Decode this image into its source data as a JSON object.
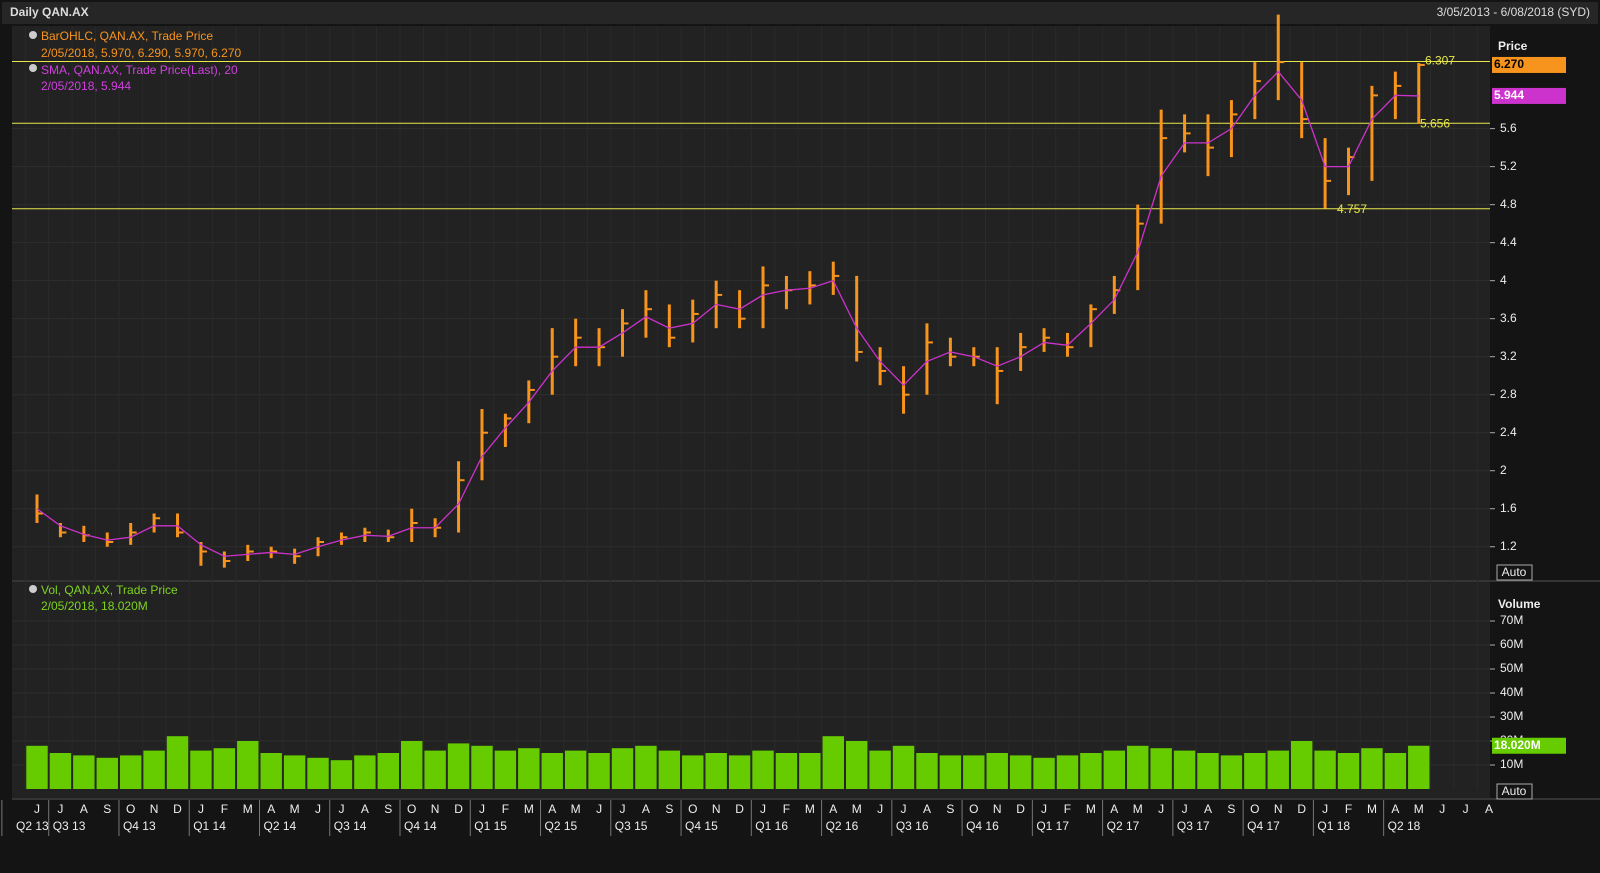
{
  "chart_data": {
    "type": "ohlc",
    "title": "Daily QAN.AX",
    "date_range": "3/05/2013 - 6/08/2018 (SYD)",
    "price_axis_label": "Price",
    "volume_axis_label": "Volume",
    "auto_label": "Auto",
    "categories": [
      "J",
      "J",
      "A",
      "S",
      "O",
      "N",
      "D",
      "J",
      "F",
      "M",
      "A",
      "M",
      "J",
      "J",
      "A",
      "S",
      "O",
      "N",
      "D",
      "J",
      "F",
      "M",
      "A",
      "M",
      "J",
      "J",
      "A",
      "S",
      "O",
      "N",
      "D",
      "J",
      "F",
      "M",
      "A",
      "M",
      "J",
      "J",
      "A",
      "S",
      "O",
      "N",
      "D",
      "J",
      "F",
      "M",
      "A",
      "M",
      "J",
      "J",
      "A",
      "S",
      "O",
      "N",
      "D",
      "J",
      "F",
      "M",
      "A",
      "M",
      "J",
      "J",
      "A"
    ],
    "quarters": [
      "Q2 13",
      "Q3 13",
      "Q4 13",
      "Q1 14",
      "Q2 14",
      "Q3 14",
      "Q4 14",
      "Q1 15",
      "Q2 15",
      "Q3 15",
      "Q4 15",
      "Q1 16",
      "Q2 16",
      "Q3 16",
      "Q4 16",
      "Q1 17",
      "Q2 17",
      "Q3 17",
      "Q4 17",
      "Q1 18",
      "Q2 18"
    ],
    "series": [
      {
        "name": "BarOHLC, QAN.AX, Trade Price",
        "legend_value": "2/05/2018, 5.970, 6.290, 5.970, 6.270",
        "color": "#f7941d",
        "high": [
          1.75,
          1.45,
          1.42,
          1.35,
          1.45,
          1.55,
          1.55,
          1.25,
          1.15,
          1.22,
          1.2,
          1.18,
          1.3,
          1.35,
          1.4,
          1.38,
          1.6,
          1.5,
          2.1,
          2.65,
          2.6,
          2.95,
          3.5,
          3.6,
          3.5,
          3.7,
          3.9,
          3.75,
          3.8,
          4.0,
          3.9,
          4.15,
          4.05,
          4.1,
          4.2,
          4.05,
          3.3,
          3.1,
          3.55,
          3.4,
          3.3,
          3.3,
          3.45,
          3.5,
          3.45,
          3.75,
          4.05,
          4.8,
          5.8,
          5.75,
          5.75,
          5.9,
          6.3,
          6.8,
          6.3,
          5.5,
          5.4,
          6.05,
          6.2,
          6.29,
          null,
          null,
          null
        ],
        "low": [
          1.45,
          1.3,
          1.25,
          1.2,
          1.22,
          1.35,
          1.3,
          1.0,
          0.98,
          1.05,
          1.08,
          1.02,
          1.1,
          1.22,
          1.25,
          1.25,
          1.25,
          1.3,
          1.35,
          1.9,
          2.25,
          2.5,
          2.8,
          3.1,
          3.1,
          3.2,
          3.4,
          3.3,
          3.35,
          3.5,
          3.5,
          3.5,
          3.7,
          3.75,
          3.85,
          3.15,
          2.9,
          2.6,
          2.8,
          3.1,
          3.1,
          2.7,
          3.05,
          3.25,
          3.2,
          3.3,
          3.65,
          3.9,
          4.6,
          5.35,
          5.1,
          5.3,
          5.7,
          5.9,
          5.5,
          4.76,
          4.9,
          5.05,
          5.7,
          5.65,
          null,
          null,
          null
        ],
        "values": [
          1.55,
          1.35,
          1.32,
          1.25,
          1.35,
          1.5,
          1.35,
          1.15,
          1.05,
          1.15,
          1.15,
          1.1,
          1.25,
          1.3,
          1.35,
          1.3,
          1.45,
          1.4,
          1.9,
          2.4,
          2.55,
          2.85,
          3.2,
          3.4,
          3.3,
          3.55,
          3.7,
          3.4,
          3.65,
          3.85,
          3.6,
          3.95,
          3.9,
          3.95,
          4.05,
          3.25,
          3.05,
          2.8,
          3.35,
          3.2,
          3.2,
          3.05,
          3.3,
          3.4,
          3.3,
          3.7,
          3.9,
          4.6,
          5.5,
          5.55,
          5.4,
          5.75,
          6.1,
          6.3,
          5.7,
          5.05,
          5.3,
          5.95,
          6.05,
          6.27,
          null,
          null,
          null
        ]
      },
      {
        "name": "SMA, QAN.AX, Trade Price(Last),  20",
        "legend_value": "2/05/2018, 5.944",
        "color": "#cc33cc",
        "values": [
          1.6,
          1.42,
          1.33,
          1.27,
          1.3,
          1.42,
          1.42,
          1.22,
          1.1,
          1.12,
          1.14,
          1.12,
          1.2,
          1.27,
          1.32,
          1.31,
          1.4,
          1.4,
          1.65,
          2.15,
          2.45,
          2.72,
          3.05,
          3.3,
          3.3,
          3.45,
          3.62,
          3.5,
          3.55,
          3.75,
          3.7,
          3.85,
          3.9,
          3.92,
          4.0,
          3.5,
          3.15,
          2.9,
          3.15,
          3.25,
          3.2,
          3.1,
          3.2,
          3.35,
          3.32,
          3.55,
          3.8,
          4.3,
          5.1,
          5.45,
          5.45,
          5.6,
          5.95,
          6.2,
          5.9,
          5.2,
          5.2,
          5.7,
          5.95,
          5.944,
          null,
          null,
          null
        ]
      },
      {
        "name": "Vol, QAN.AX, Trade Price",
        "legend_value": "2/05/2018, 18.020M",
        "color": "#66cc00",
        "axis": "y2",
        "values": [
          18,
          15,
          14,
          13,
          14,
          16,
          22,
          16,
          17,
          20,
          15,
          14,
          13,
          12,
          14,
          15,
          20,
          16,
          19,
          18,
          16,
          17,
          15,
          16,
          15,
          17,
          18,
          16,
          14,
          15,
          14,
          16,
          15,
          15,
          22,
          20,
          16,
          18,
          15,
          14,
          14,
          15,
          14,
          13,
          14,
          15,
          16,
          18,
          17,
          16,
          15,
          14,
          15,
          16,
          20,
          16,
          15,
          17,
          15,
          18.02,
          null,
          null,
          null
        ]
      }
    ],
    "ylim": [
      0.85,
      6.68
    ],
    "yticks": [
      1.2,
      1.6,
      2,
      2.4,
      2.8,
      3.2,
      3.6,
      4,
      4.4,
      4.8,
      5.2,
      5.6
    ],
    "y2lim": [
      0,
      85
    ],
    "y2ticks": [
      {
        "value": 10,
        "label": "10M"
      },
      {
        "value": 20,
        "label": "20M"
      },
      {
        "value": 30,
        "label": "30M"
      },
      {
        "value": 40,
        "label": "40M"
      },
      {
        "value": 50,
        "label": "50M"
      },
      {
        "value": 60,
        "label": "60M"
      },
      {
        "value": 70,
        "label": "70M"
      }
    ],
    "levels": [
      6.307,
      5.656,
      4.757
    ],
    "level_color": "#e8e84a",
    "last_price": {
      "value": 6.27,
      "label": "6.270"
    },
    "last_sma": {
      "value": 5.944,
      "label": "5.944"
    },
    "last_volume": {
      "value": 18.02,
      "label": "18.020M"
    },
    "grid": true
  }
}
